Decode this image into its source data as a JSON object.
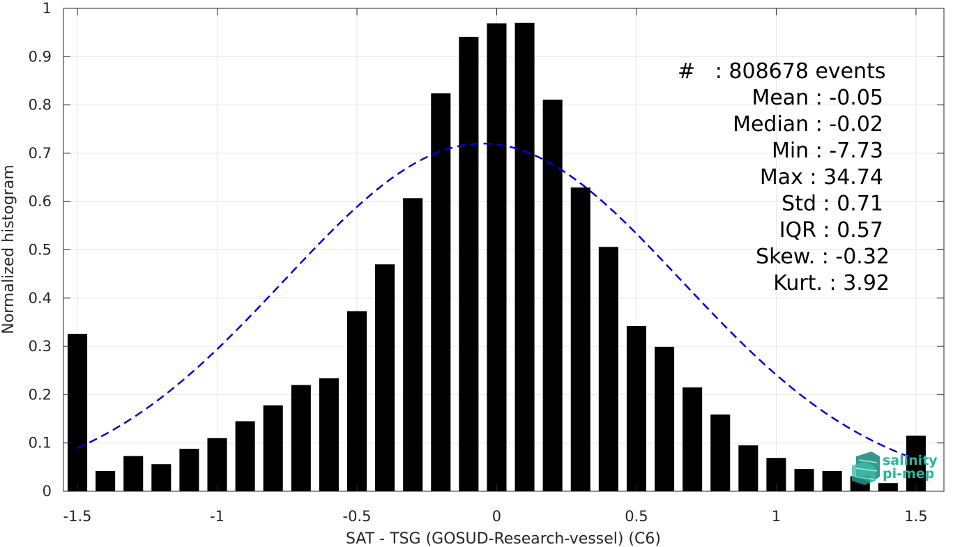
{
  "chart_data": {
    "type": "bar",
    "xlabel": "SAT - TSG (GOSUD-Research-vessel) (C6)",
    "ylabel": "Normalized histogram",
    "xlim": [
      -1.55,
      1.6
    ],
    "ylim": [
      0,
      1
    ],
    "x_ticks": [
      -1.5,
      -1,
      -0.5,
      0,
      0.5,
      1,
      1.5
    ],
    "x_tick_labels": [
      "-1.5",
      "-1",
      "-0.5",
      "0",
      "0.5",
      "1",
      "1.5"
    ],
    "y_ticks": [
      0,
      0.1,
      0.2,
      0.3,
      0.4,
      0.5,
      0.6,
      0.7,
      0.8,
      0.9,
      1
    ],
    "y_tick_labels": [
      "0",
      "0.1",
      "0.2",
      "0.3",
      "0.4",
      "0.5",
      "0.6",
      "0.7",
      "0.8",
      "0.9",
      "1"
    ],
    "grid": true,
    "bar_width": 0.07,
    "bar_color": "#000000",
    "series": [
      {
        "x": [
          -1.5,
          -1.4,
          -1.3,
          -1.2,
          -1.1,
          -1.0,
          -0.9,
          -0.8,
          -0.7,
          -0.6,
          -0.5,
          -0.4,
          -0.3,
          -0.2,
          -0.1,
          0.0,
          0.1,
          0.2,
          0.3,
          0.4,
          0.5,
          0.6,
          0.7,
          0.8,
          0.9,
          1.0,
          1.1,
          1.2,
          1.3,
          1.4,
          1.5
        ],
        "values": [
          0.326,
          0.042,
          0.073,
          0.056,
          0.088,
          0.11,
          0.145,
          0.178,
          0.22,
          0.234,
          0.373,
          0.47,
          0.607,
          0.824,
          0.941,
          0.969,
          0.97,
          0.811,
          0.629,
          0.506,
          0.342,
          0.299,
          0.215,
          0.159,
          0.095,
          0.069,
          0.046,
          0.042,
          0.031,
          0.017,
          0.115
        ]
      }
    ],
    "fit_curve": {
      "style": "dashed",
      "color": "#0000dd",
      "mean": -0.05,
      "std": 0.71,
      "peak": 0.72,
      "x_range": [
        -1.5,
        1.5
      ]
    },
    "annotation_lines": [
      "#   : 808678 events",
      "Mean : -0.05",
      "Median : -0.02",
      "Min : -7.73",
      "Max : 34.74",
      "Std : 0.71",
      "IQR : 0.57",
      "Skew. : -0.32",
      "Kurt. : 3.92"
    ]
  },
  "logo": {
    "line1": "salinity",
    "line2": "pi-mep",
    "color": "#2bb3a0"
  }
}
